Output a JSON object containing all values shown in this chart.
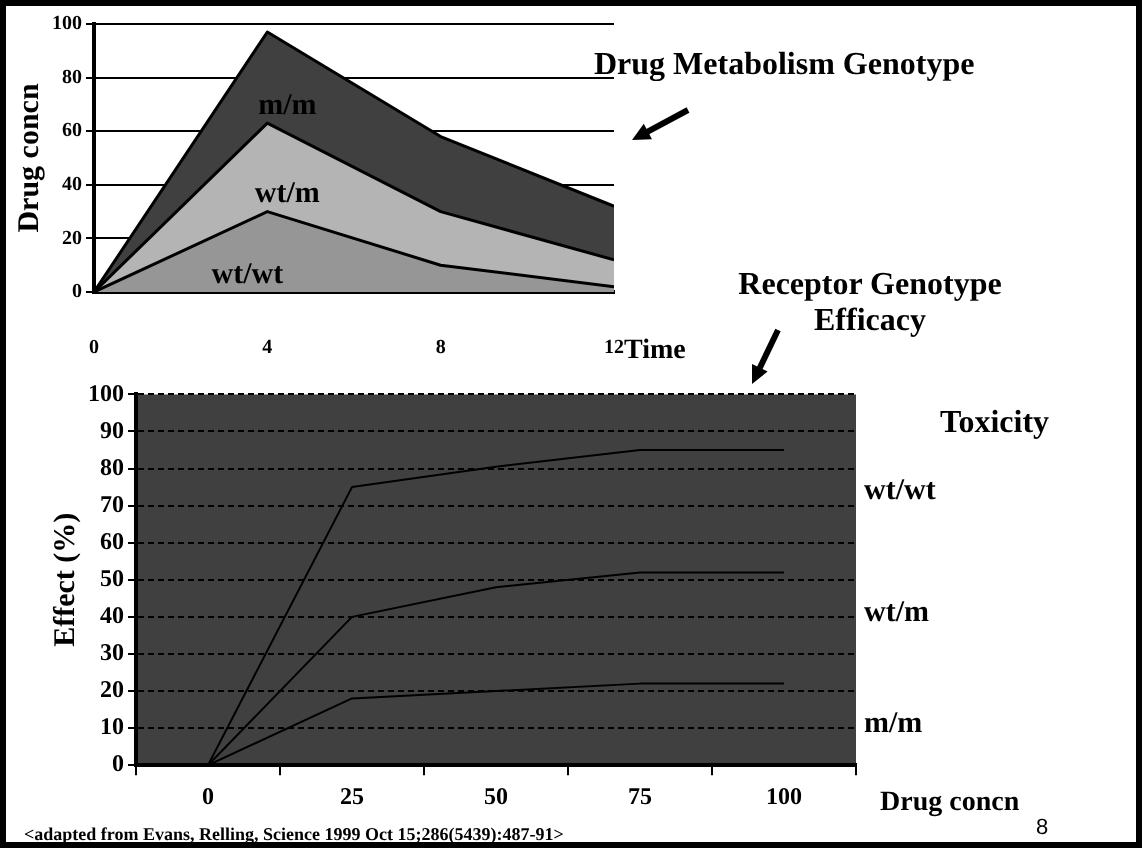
{
  "chart_data": [
    {
      "type": "area",
      "xlabel": "Time",
      "ylabel": "Drug concn",
      "x": [
        0,
        4,
        8,
        12
      ],
      "xlim": [
        0,
        12
      ],
      "xticks": [
        0,
        4,
        8,
        12
      ],
      "ylim": [
        0,
        100
      ],
      "yticks": [
        0,
        20,
        40,
        60,
        80,
        100
      ],
      "grid": "y",
      "legend": false,
      "marker": "none",
      "series": [
        {
          "name": "wt/wt",
          "color": "#969696",
          "values": [
            0,
            30,
            10,
            2
          ]
        },
        {
          "name": "wt/m",
          "color": "#b4b4b4",
          "values": [
            0,
            63,
            30,
            12
          ]
        },
        {
          "name": "m/m",
          "color": "#404040",
          "values": [
            0,
            97,
            58,
            32
          ]
        }
      ],
      "annotations": [
        "Drug Metabolism Genotype"
      ]
    },
    {
      "type": "line",
      "xlabel": "Drug concn",
      "ylabel": "Effect (%)",
      "categories": [
        "0",
        "25",
        "50",
        "75",
        "100"
      ],
      "ylim": [
        0,
        100
      ],
      "yticks": [
        0,
        10,
        20,
        30,
        40,
        50,
        60,
        70,
        80,
        90,
        100
      ],
      "grid": "y",
      "legend": false,
      "marker": "none",
      "line_style": "solid",
      "series": [
        {
          "name": "wt/wt",
          "color": "#000000",
          "values": [
            0,
            75,
            80.5,
            85,
            85
          ]
        },
        {
          "name": "wt/m",
          "color": "#000000",
          "values": [
            0,
            40,
            48,
            52,
            52
          ]
        },
        {
          "name": "m/m",
          "color": "#000000",
          "values": [
            0,
            18,
            20,
            22,
            22
          ]
        }
      ],
      "annotations": [
        "Receptor Genotype Efficacy",
        "Toxicity",
        "8",
        "<adapted from Evans, Relling, Science 1999 Oct 15;286(5439):487-91>"
      ]
    }
  ]
}
